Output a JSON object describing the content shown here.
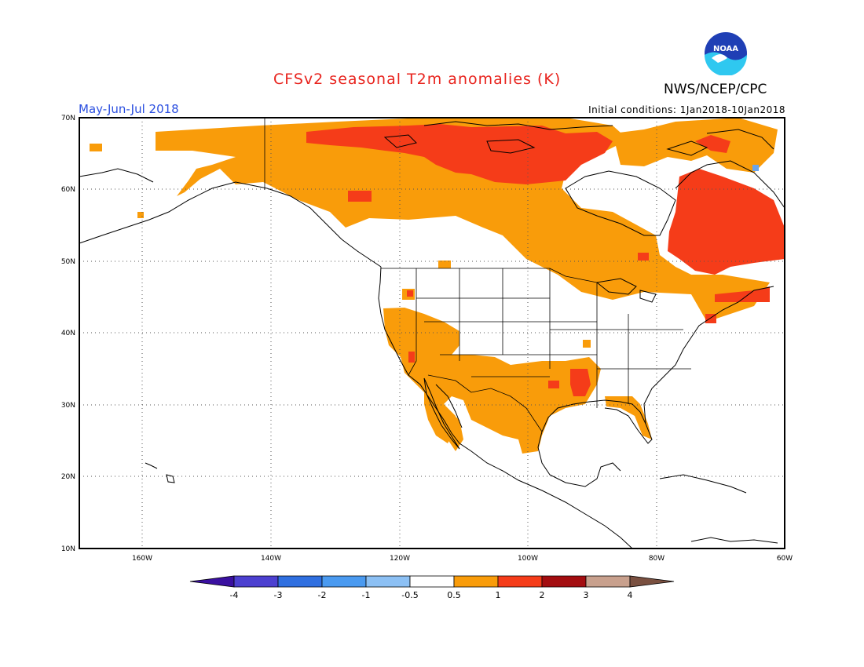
{
  "title": "CFSv2 seasonal T2m anomalies (K)",
  "agency": "NWS/NCEP/CPC",
  "logo_text": "NOAA",
  "period": "May-Jun-Jul 2018",
  "initial_conditions": "Initial conditions: 1Jan2018-10Jan2018",
  "lat_labels": [
    "70N",
    "60N",
    "50N",
    "40N",
    "30N",
    "20N",
    "10N"
  ],
  "lon_labels": [
    "160W",
    "140W",
    "120W",
    "100W",
    "80W",
    "60W"
  ],
  "colorbar": {
    "labels": [
      "-4",
      "-3",
      "-2",
      "-1",
      "-0.5",
      "0.5",
      "1",
      "2",
      "3",
      "4"
    ],
    "colors": [
      "#3a10a0",
      "#4c40d0",
      "#2f6fe0",
      "#4a9af0",
      "#8cc0f4",
      "#ffffff",
      "#f99c0a",
      "#f53c19",
      "#a30d10",
      "#c8a08d",
      "#7a5040"
    ]
  },
  "colors": {
    "title": "#e8231d",
    "period": "#2b4fe0",
    "anomaly_0_5_to_1": "#f99c0a",
    "anomaly_1_to_2": "#f53c19"
  }
}
